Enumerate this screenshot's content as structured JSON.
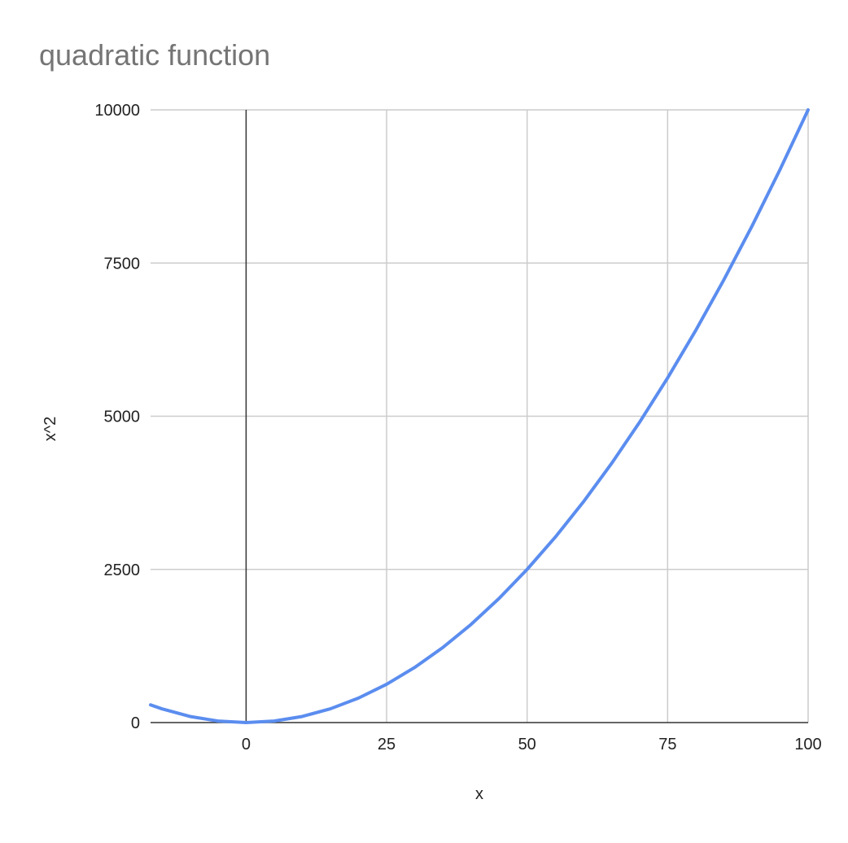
{
  "chart_data": {
    "type": "line",
    "title": "quadratic function",
    "xlabel": "x",
    "ylabel": "x^2",
    "xlim": [
      -17,
      100
    ],
    "ylim": [
      0,
      10000
    ],
    "x_ticks": [
      0,
      25,
      50,
      75,
      100
    ],
    "y_ticks": [
      0,
      2500,
      5000,
      7500,
      10000
    ],
    "x_tick_labels": [
      "0",
      "25",
      "50",
      "75",
      "100"
    ],
    "y_tick_labels": [
      "0",
      "2500",
      "5000",
      "7500",
      "10000"
    ],
    "grid": true,
    "legend": "none",
    "series": [
      {
        "color": "#5b8def",
        "x": [
          -17,
          -15,
          -10,
          -5,
          0,
          5,
          10,
          15,
          20,
          25,
          30,
          35,
          40,
          45,
          50,
          55,
          60,
          65,
          70,
          75,
          80,
          85,
          90,
          95,
          100
        ],
        "values": [
          289,
          225,
          100,
          25,
          0,
          25,
          100,
          225,
          400,
          625,
          900,
          1225,
          1600,
          2025,
          2500,
          3025,
          3600,
          4225,
          4900,
          5625,
          6400,
          7225,
          8100,
          9025,
          10000
        ]
      }
    ]
  }
}
